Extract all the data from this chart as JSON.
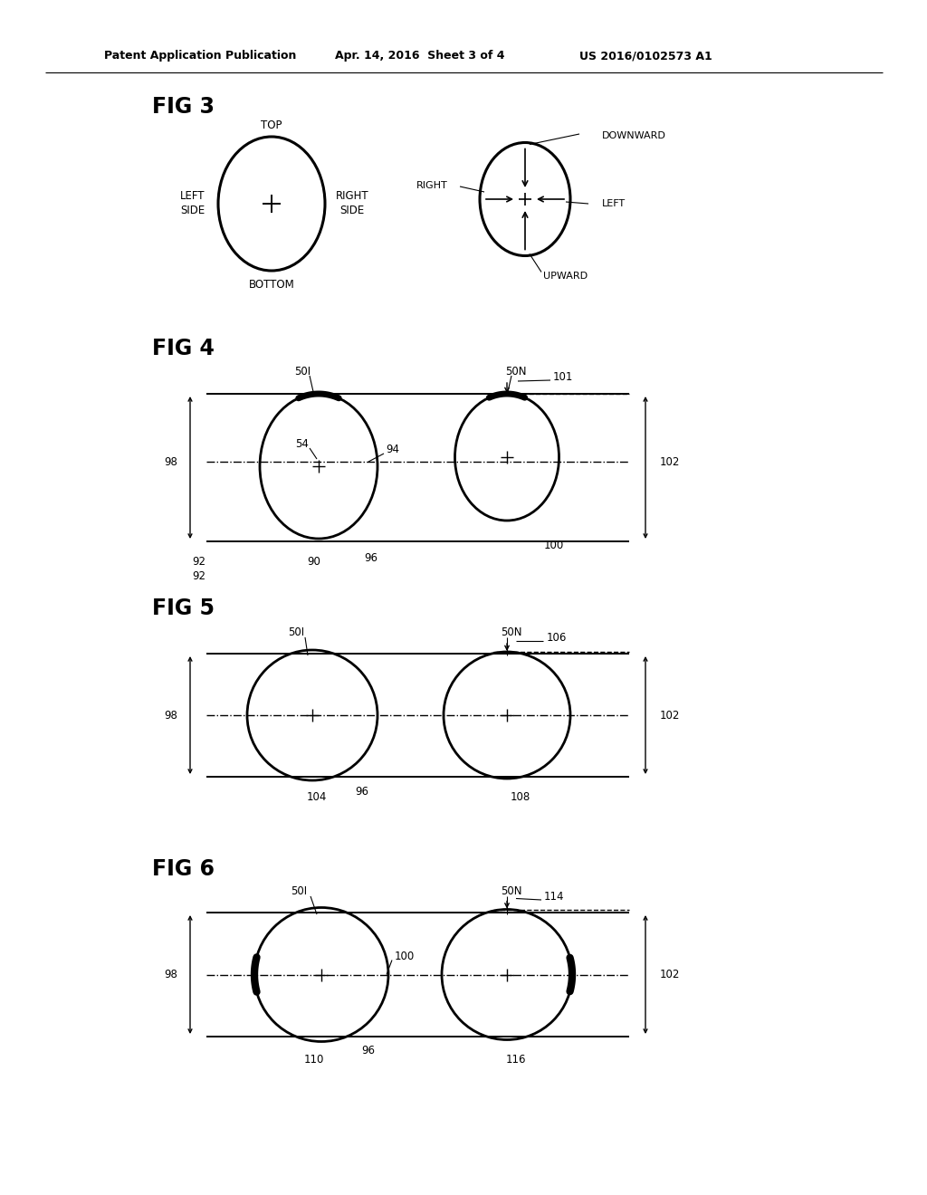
{
  "bg_color": "#ffffff",
  "header_left": "Patent Application Publication",
  "header_mid": "Apr. 14, 2016  Sheet 3 of 4",
  "header_right": "US 2016/0102573 A1"
}
